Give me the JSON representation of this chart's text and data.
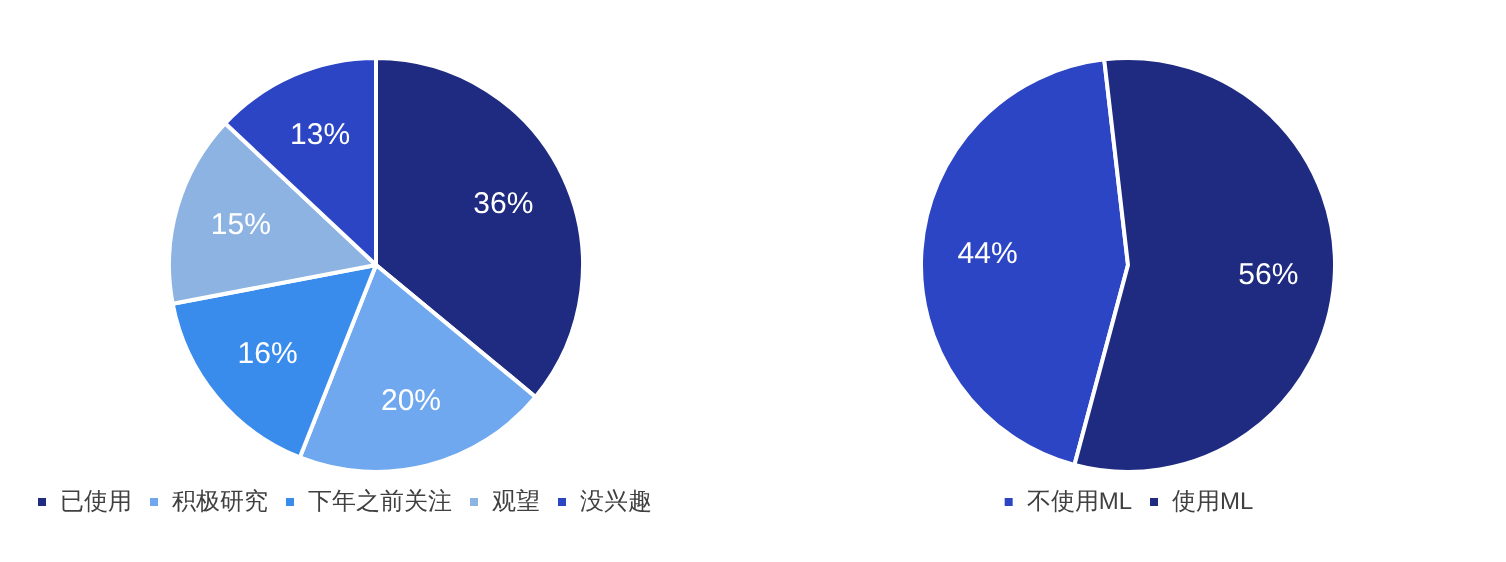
{
  "chart_data": [
    {
      "type": "pie",
      "categories": [
        "已使用",
        "积极研究",
        "下年之前关注",
        "观望",
        "没兴趣"
      ],
      "values": [
        36,
        20,
        16,
        15,
        13
      ],
      "colors": [
        "#1f2b80",
        "#6fa8ee",
        "#3a8cec",
        "#8db3e2",
        "#2c45c4"
      ],
      "value_labels": [
        "36%",
        "20%",
        "16%",
        "15%",
        "13%"
      ],
      "legend": "bottom"
    },
    {
      "type": "pie",
      "categories": [
        "不使用ML",
        "使用ML"
      ],
      "values": [
        44,
        56
      ],
      "colors": [
        "#2c45c4",
        "#1f2b80"
      ],
      "value_labels": [
        "44%",
        "56%"
      ],
      "legend": "bottom"
    }
  ]
}
